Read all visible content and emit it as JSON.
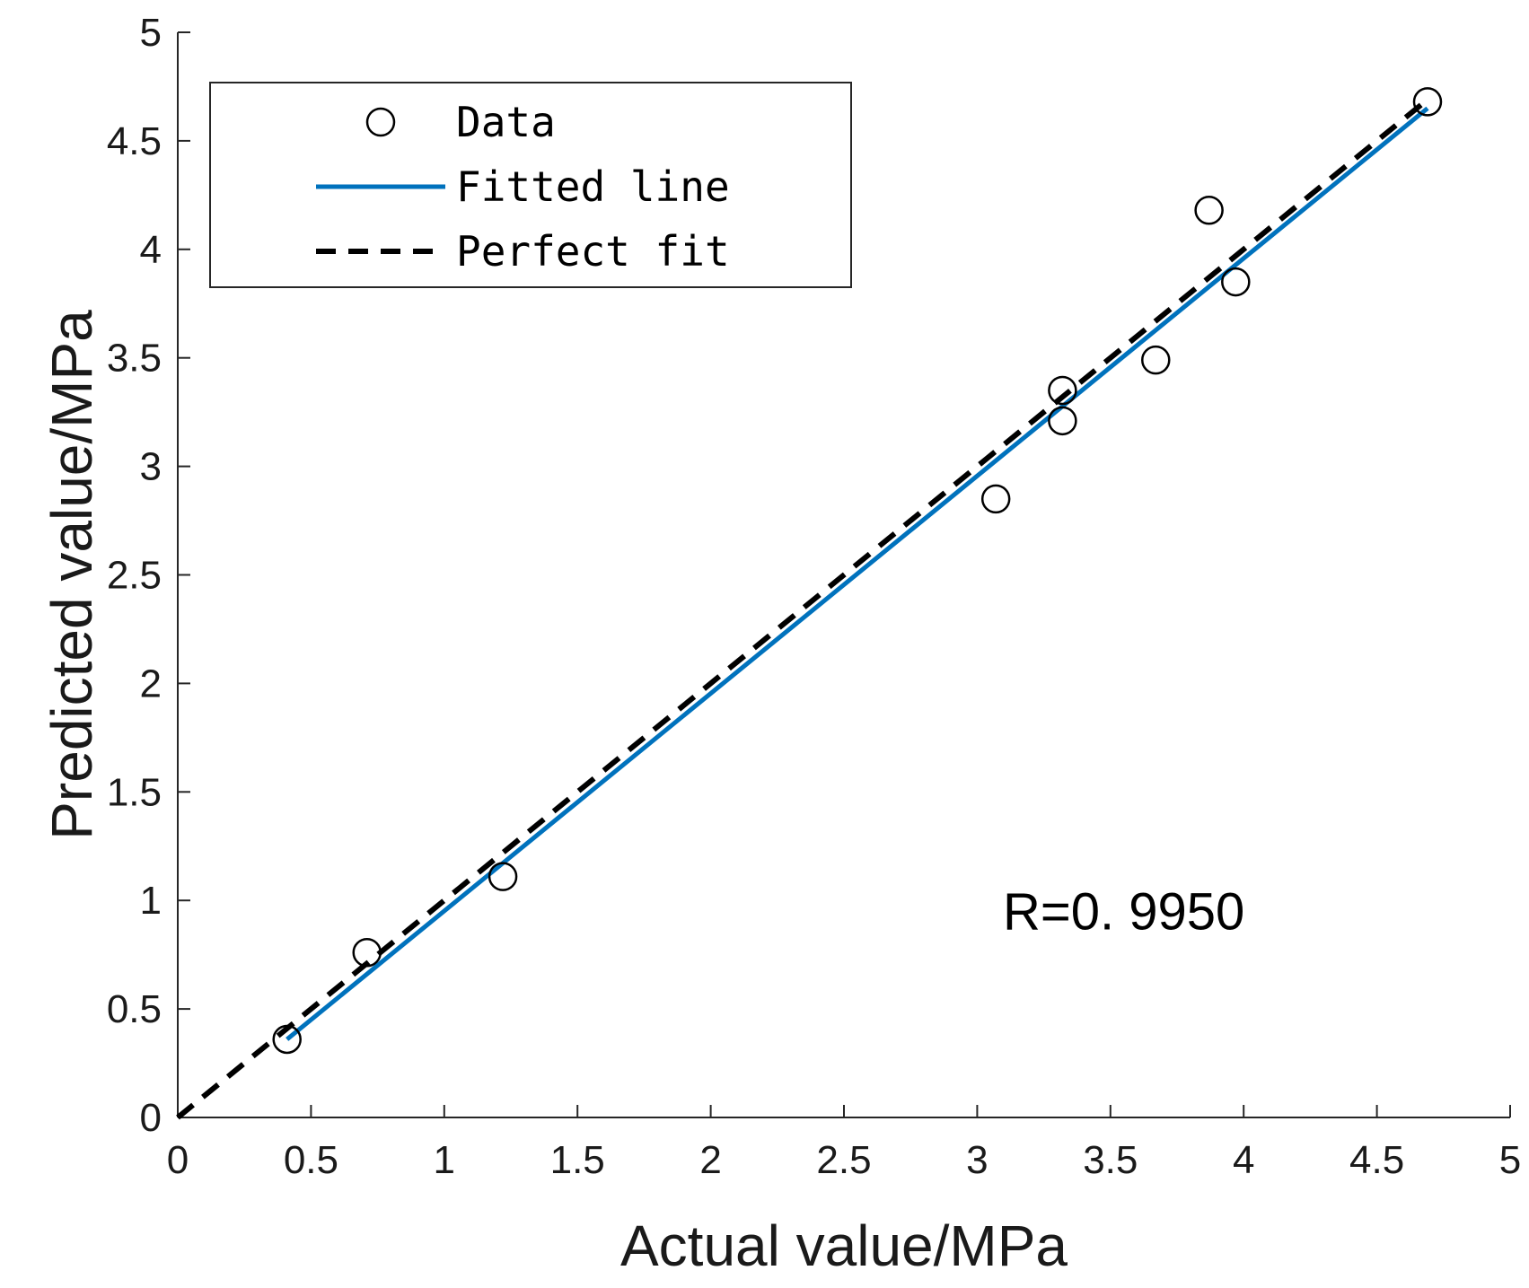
{
  "chart_data": {
    "type": "scatter",
    "xlabel": "Actual value/MPa",
    "ylabel": "Predicted value/MPa",
    "xlim": [
      0,
      5
    ],
    "ylim": [
      0,
      5
    ],
    "xticks": [
      "0",
      "0.5",
      "1",
      "1.5",
      "2",
      "2.5",
      "3",
      "3.5",
      "4",
      "4.5",
      "5"
    ],
    "yticks": [
      "0",
      "0.5",
      "1",
      "1.5",
      "2",
      "2.5",
      "3",
      "3.5",
      "4",
      "4.5",
      "5"
    ],
    "grid": false,
    "legend_position": "top-left",
    "series": [
      {
        "name": "Data",
        "kind": "markers",
        "marker": "open-circle",
        "color": "#000000",
        "points": [
          {
            "x": 0.41,
            "y": 0.36
          },
          {
            "x": 0.71,
            "y": 0.76
          },
          {
            "x": 1.22,
            "y": 1.11
          },
          {
            "x": 3.07,
            "y": 2.85
          },
          {
            "x": 3.32,
            "y": 3.35
          },
          {
            "x": 3.32,
            "y": 3.21
          },
          {
            "x": 3.67,
            "y": 3.49
          },
          {
            "x": 3.87,
            "y": 4.18
          },
          {
            "x": 3.97,
            "y": 3.85
          },
          {
            "x": 4.69,
            "y": 4.68
          }
        ]
      },
      {
        "name": "Fitted line",
        "kind": "line",
        "color": "#0072BD",
        "style": "solid",
        "points": [
          {
            "x": 0.41,
            "y": 0.36
          },
          {
            "x": 4.69,
            "y": 4.65
          }
        ]
      },
      {
        "name": "Perfect fit",
        "kind": "line",
        "color": "#000000",
        "style": "dashed",
        "points": [
          {
            "x": 0,
            "y": 0
          },
          {
            "x": 4.69,
            "y": 4.69
          }
        ]
      }
    ],
    "annotations": [
      {
        "text": "R=0. 9950",
        "x": 3.55,
        "y": 0.95
      }
    ]
  }
}
